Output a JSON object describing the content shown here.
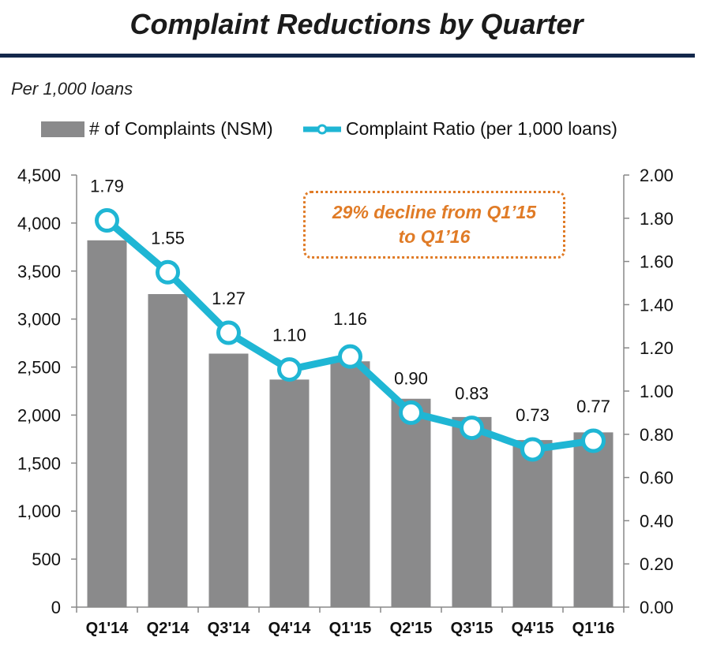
{
  "header": {
    "title": "Complaint Reductions by Quarter",
    "subtitle": "Per 1,000 loans"
  },
  "colors": {
    "bar": "#8a8a8b",
    "line": "#1fb6d4",
    "rule": "#14284b",
    "callout": "#e07b26"
  },
  "callout": {
    "line1": "29% decline from Q1’15",
    "line2": "to Q1’16"
  },
  "chart_data": {
    "type": "bar",
    "title": "Complaint Reductions by Quarter",
    "categories": [
      "Q1'14",
      "Q2'14",
      "Q3'14",
      "Q4'14",
      "Q1'15",
      "Q2'15",
      "Q3'15",
      "Q4'15",
      "Q1'16"
    ],
    "series": [
      {
        "name": "# of Complaints (NSM)",
        "type": "bar",
        "axis": "left",
        "values": [
          3820,
          3260,
          2640,
          2370,
          2560,
          2170,
          1980,
          1740,
          1820
        ]
      },
      {
        "name": "Complaint Ratio (per 1,000 loans)",
        "type": "line",
        "axis": "right",
        "values": [
          1.79,
          1.55,
          1.27,
          1.1,
          1.16,
          0.9,
          0.83,
          0.73,
          0.77
        ],
        "labels": [
          "1.79",
          "1.55",
          "1.27",
          "1.10",
          "1.16",
          "0.90",
          "0.83",
          "0.73",
          "0.77"
        ]
      }
    ],
    "y_left": {
      "range": [
        0,
        4500
      ],
      "ticks": [
        0,
        500,
        1000,
        1500,
        2000,
        2500,
        3000,
        3500,
        4000,
        4500
      ],
      "tick_labels": [
        "0",
        "500",
        "1,000",
        "1,500",
        "2,000",
        "2,500",
        "3,000",
        "3,500",
        "4,000",
        "4,500"
      ]
    },
    "y_right": {
      "range": [
        0,
        2.0
      ],
      "ticks": [
        0,
        0.2,
        0.4,
        0.6,
        0.8,
        1.0,
        1.2,
        1.4,
        1.6,
        1.8,
        2.0
      ],
      "tick_labels": [
        "0.00",
        "0.20",
        "0.40",
        "0.60",
        "0.80",
        "1.00",
        "1.20",
        "1.40",
        "1.60",
        "1.80",
        "2.00"
      ]
    },
    "grid": false,
    "legend": "top"
  }
}
